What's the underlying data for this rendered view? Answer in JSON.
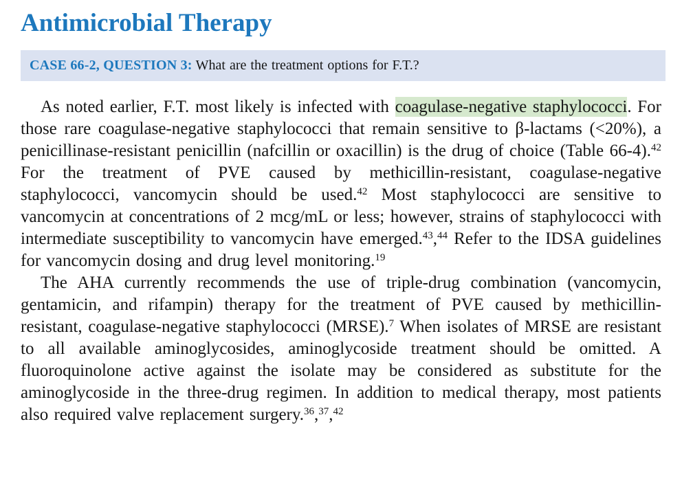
{
  "page": {
    "title": "Antimicrobial Therapy",
    "title_color": "#1d78bd",
    "background_color": "#ffffff",
    "text_color": "#161616"
  },
  "case_box": {
    "label": "CASE 66-2, QUESTION 3:",
    "question": "What are the treatment options for F.T.?",
    "bg_color": "#dbe2f1",
    "label_color": "#1d78bd"
  },
  "highlight_color": "#d6e9ce",
  "paragraphs": [
    {
      "segments": [
        {
          "t": "text",
          "v": "As noted earlier, F.T. most likely is infected with "
        },
        {
          "t": "hl",
          "v": "coagulase-negative staphylococci"
        },
        {
          "t": "text",
          "v": ". For those rare coagulase-negative staphylococci that remain sensitive to β-lactams (<20%), a penicillinase-resistant penicillin (nafcillin or oxacillin) is the drug of choice (Table 66-4)."
        },
        {
          "t": "sup",
          "v": "42"
        },
        {
          "t": "text",
          "v": " For the treatment of PVE caused by methicillin-resistant, coagulase-negative staphylococci, vancomycin should be used."
        },
        {
          "t": "sup",
          "v": "42"
        },
        {
          "t": "text",
          "v": " Most staphylococci are sensitive to vancomycin at concentrations of 2 mcg/mL or less; however, strains of staphylococci with intermediate susceptibility to vancomycin have emerged."
        },
        {
          "t": "sup",
          "v": "43"
        },
        {
          "t": "text",
          "v": ","
        },
        {
          "t": "sup",
          "v": "44"
        },
        {
          "t": "text",
          "v": " Refer to the IDSA guidelines for vancomycin dosing and drug level monitoring."
        },
        {
          "t": "sup",
          "v": "19"
        }
      ]
    },
    {
      "segments": [
        {
          "t": "text",
          "v": "The AHA currently recommends the use of triple-drug combination (vancomycin, gentamicin, and rifampin) therapy for the treatment of PVE caused by methicillin-resistant, coagulase-negative staphylococci (MRSE)."
        },
        {
          "t": "sup",
          "v": "7"
        },
        {
          "t": "text",
          "v": " When isolates of MRSE are resistant to all available aminoglycosides, aminoglycoside treatment should be omitted. A fluoroquinolone active against the isolate may be considered as substitute for the aminoglycoside in the three-drug regimen. In addition to medical therapy, most patients also required valve replacement surgery."
        },
        {
          "t": "sup",
          "v": "36"
        },
        {
          "t": "text",
          "v": ","
        },
        {
          "t": "sup",
          "v": "37"
        },
        {
          "t": "text",
          "v": ","
        },
        {
          "t": "sup",
          "v": "42"
        }
      ]
    }
  ]
}
